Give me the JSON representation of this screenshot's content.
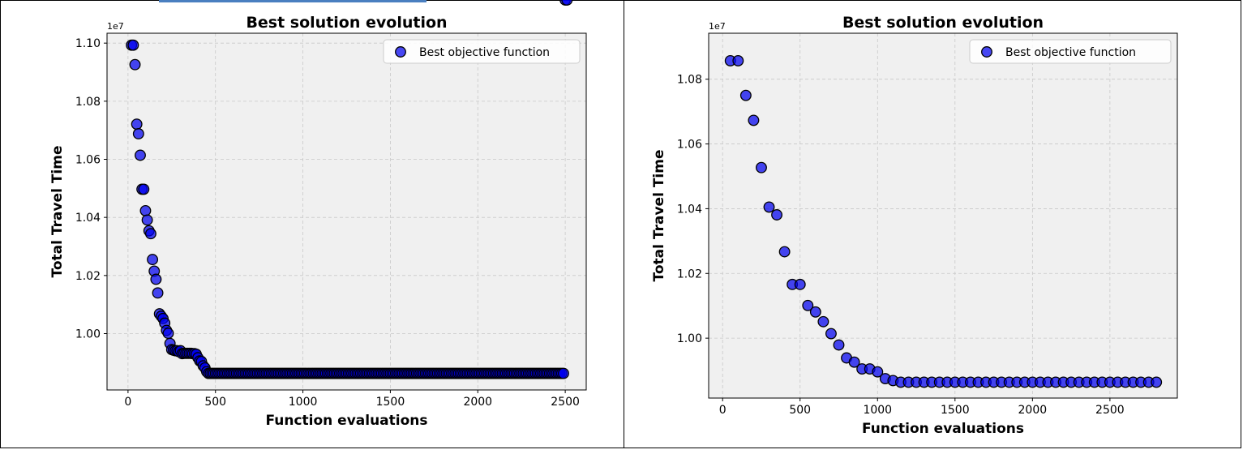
{
  "chart_data": [
    {
      "type": "scatter",
      "title": "Best solution evolution",
      "xlabel": "Function evaluations",
      "ylabel": "Total Travel Time",
      "y_offset_label": "1e7",
      "y_scale": 10000000,
      "xlim": [
        -120,
        2620
      ],
      "ylim": [
        0.9806,
        1.1034
      ],
      "xticks": [
        0,
        500,
        1000,
        1500,
        2000,
        2500
      ],
      "xtick_labels": [
        "0",
        "500",
        "1000",
        "1500",
        "2000",
        "2500"
      ],
      "yticks": [
        1.0,
        1.02,
        1.04,
        1.06,
        1.08,
        1.1
      ],
      "ytick_labels": [
        "1.00",
        "1.02",
        "1.04",
        "1.06",
        "1.08",
        "1.10"
      ],
      "grid": true,
      "legend": "top-right",
      "series": [
        {
          "name": "Best objective function",
          "color": "#0000ee",
          "points_x": [
            20,
            30,
            40,
            50,
            60,
            70,
            80,
            90,
            100,
            110,
            120,
            130,
            140,
            150,
            160,
            170,
            180,
            190,
            200,
            210,
            220,
            230,
            240,
            250,
            260,
            270,
            280,
            290,
            300,
            310,
            320,
            330,
            340,
            350,
            360,
            370,
            380,
            390,
            400,
            410,
            420,
            430,
            440,
            450,
            460,
            470,
            480,
            490,
            500,
            510,
            520,
            530,
            540,
            550,
            560,
            570,
            580,
            590,
            600,
            610,
            620,
            630,
            640,
            650,
            660,
            670,
            680,
            690,
            700,
            710,
            720,
            730,
            740,
            750,
            760,
            770,
            780,
            790,
            800,
            810,
            820,
            830,
            840,
            850,
            860,
            870,
            880,
            890,
            900,
            910,
            920,
            930,
            940,
            950,
            960,
            970,
            980,
            990,
            1000,
            1010,
            1020,
            1030,
            1040,
            1050,
            1060,
            1070,
            1080,
            1090,
            1100,
            1110,
            1120,
            1130,
            1140,
            1150,
            1160,
            1170,
            1180,
            1190,
            1200,
            1210,
            1220,
            1230,
            1240,
            1250,
            1260,
            1270,
            1280,
            1290,
            1300,
            1310,
            1320,
            1330,
            1340,
            1350,
            1360,
            1370,
            1380,
            1390,
            1400,
            1410,
            1420,
            1430,
            1440,
            1450,
            1460,
            1470,
            1480,
            1490,
            1500,
            1510,
            1520,
            1530,
            1540,
            1550,
            1560,
            1570,
            1580,
            1590,
            1600,
            1610,
            1620,
            1630,
            1640,
            1650,
            1660,
            1670,
            1680,
            1690,
            1700,
            1710,
            1720,
            1730,
            1740,
            1750,
            1760,
            1770,
            1780,
            1790,
            1800,
            1810,
            1820,
            1830,
            1840,
            1850,
            1860,
            1870,
            1880,
            1890,
            1900,
            1910,
            1920,
            1930,
            1940,
            1950,
            1960,
            1970,
            1980,
            1990,
            2000,
            2010,
            2020,
            2030,
            2040,
            2050,
            2060,
            2070,
            2080,
            2090,
            2100,
            2110,
            2120,
            2130,
            2140,
            2150,
            2160,
            2170,
            2180,
            2190,
            2200,
            2210,
            2220,
            2230,
            2240,
            2250,
            2260,
            2270,
            2280,
            2290,
            2300,
            2310,
            2320,
            2330,
            2340,
            2350,
            2360,
            2370,
            2380,
            2390,
            2400,
            2410,
            2420,
            2430,
            2440,
            2450,
            2460,
            2470,
            2480,
            2490,
            2500,
            2510
          ],
          "points_y": [
            1.0993,
            1.0993,
            1.0926,
            1.0721,
            1.0688,
            1.0614,
            1.0497,
            1.0497,
            1.0423,
            1.0391,
            1.0354,
            1.0344,
            1.0255,
            1.0215,
            1.0187,
            1.014,
            1.0068,
            1.006,
            1.0052,
            1.0036,
            1.0011,
            1.0001,
            0.9966,
            0.9945,
            0.9943,
            0.9941,
            0.9941,
            0.9938,
            0.9941,
            0.9931,
            0.9932,
            0.9932,
            0.9932,
            0.9932,
            0.9932,
            0.9931,
            0.9931,
            0.9929,
            0.9917,
            0.9906,
            0.9904,
            0.9889,
            0.9882,
            0.9869,
            0.9863,
            0.9863,
            0.9863,
            0.9863,
            0.9863,
            0.9863,
            0.9863,
            0.9863,
            0.9863,
            0.9863,
            0.9863,
            0.9863,
            0.9863,
            0.9863,
            0.9863,
            0.9863,
            0.9863,
            0.9863,
            0.9863,
            0.9863,
            0.9863,
            0.9863,
            0.9863,
            0.9863,
            0.9863,
            0.9863,
            0.9863,
            0.9863,
            0.9863,
            0.9863,
            0.9863,
            0.9863,
            0.9863,
            0.9863,
            0.9863,
            0.9863,
            0.9863,
            0.9863,
            0.9863,
            0.9863,
            0.9863,
            0.9863,
            0.9863,
            0.9863,
            0.9863,
            0.9863,
            0.9863,
            0.9863,
            0.9863,
            0.9863,
            0.9863,
            0.9863,
            0.9863,
            0.9863,
            0.9863,
            0.9863,
            0.9863,
            0.9863,
            0.9863,
            0.9863,
            0.9863,
            0.9863,
            0.9863,
            0.9863,
            0.9863,
            0.9863,
            0.9863,
            0.9863,
            0.9863,
            0.9863,
            0.9863,
            0.9863,
            0.9863,
            0.9863,
            0.9863,
            0.9863,
            0.9863,
            0.9863,
            0.9863,
            0.9863,
            0.9863,
            0.9863,
            0.9863,
            0.9863,
            0.9863,
            0.9863,
            0.9863,
            0.9863,
            0.9863,
            0.9863,
            0.9863,
            0.9863,
            0.9863,
            0.9863,
            0.9863,
            0.9863,
            0.9863,
            0.9863,
            0.9863,
            0.9863,
            0.9863,
            0.9863,
            0.9863,
            0.9863,
            0.9863,
            0.9863,
            0.9863,
            0.9863,
            0.9863,
            0.9863,
            0.9863,
            0.9863,
            0.9863,
            0.9863,
            0.9863,
            0.9863,
            0.9863,
            0.9863,
            0.9863,
            0.9863,
            0.9863,
            0.9863,
            0.9863,
            0.9863,
            0.9863,
            0.9863,
            0.9863,
            0.9863,
            0.9863,
            0.9863,
            0.9863,
            0.9863,
            0.9863,
            0.9863,
            0.9863,
            0.9863,
            0.9863,
            0.9863,
            0.9863,
            0.9863,
            0.9863,
            0.9863,
            0.9863,
            0.9863,
            0.9863,
            0.9863,
            0.9863,
            0.9863,
            0.9863,
            0.9863,
            0.9863,
            0.9863,
            0.9863,
            0.9863,
            0.9863,
            0.9863,
            0.9863,
            0.9863,
            0.9863,
            0.9863,
            0.9863,
            0.9863,
            0.9863,
            0.9863,
            0.9863,
            0.9863,
            0.9863,
            0.9863,
            0.9863,
            0.9863,
            0.9863,
            0.9863,
            0.9863,
            0.9863,
            0.9863,
            0.9863,
            0.9863,
            0.9863,
            0.9863,
            0.9863,
            0.9863,
            0.9863,
            0.9863,
            0.9863,
            0.9863,
            0.9863,
            0.9863,
            0.9863,
            0.9863,
            0.9863,
            0.9863,
            0.9863,
            0.9863,
            0.9863,
            0.9863,
            0.9863,
            0.9863,
            0.9863,
            0.9863,
            0.9863,
            0.9863,
            0.9863,
            0.9863,
            0.9863
          ]
        }
      ]
    },
    {
      "type": "scatter",
      "title": "Best solution evolution",
      "xlabel": "Function evaluations",
      "ylabel": "Total Travel Time",
      "y_offset_label": "1e7",
      "y_scale": 10000000,
      "xlim": [
        -90,
        2935
      ],
      "ylim": [
        0.9815,
        1.0942
      ],
      "xticks": [
        0,
        500,
        1000,
        1500,
        2000,
        2500
      ],
      "xtick_labels": [
        "0",
        "500",
        "1000",
        "1500",
        "2000",
        "2500"
      ],
      "yticks": [
        1.0,
        1.02,
        1.04,
        1.06,
        1.08
      ],
      "ytick_labels": [
        "1.00",
        "1.02",
        "1.04",
        "1.06",
        "1.08"
      ],
      "grid": true,
      "legend": "top-right",
      "series": [
        {
          "name": "Best objective function",
          "color": "#0000ee",
          "points_x": [
            50,
            100,
            150,
            200,
            250,
            300,
            350,
            400,
            450,
            500,
            550,
            600,
            650,
            700,
            750,
            800,
            850,
            900,
            950,
            1000,
            1050,
            1100,
            1150,
            1200,
            1250,
            1300,
            1350,
            1400,
            1450,
            1500,
            1550,
            1600,
            1650,
            1700,
            1750,
            1800,
            1850,
            1900,
            1950,
            2000,
            2050,
            2100,
            2150,
            2200,
            2250,
            2300,
            2350,
            2400,
            2450,
            2500,
            2550,
            2600,
            2650,
            2700,
            2750,
            2800
          ],
          "points_y": [
            1.0857,
            1.0857,
            1.075,
            1.0673,
            1.0527,
            1.0405,
            1.0381,
            1.0267,
            1.0166,
            1.0166,
            1.0101,
            1.0081,
            1.0051,
            1.0014,
            0.9979,
            0.9939,
            0.9926,
            0.9905,
            0.9905,
            0.9896,
            0.9875,
            0.9869,
            0.9864,
            0.9864,
            0.9864,
            0.9864,
            0.9864,
            0.9864,
            0.9864,
            0.9864,
            0.9864,
            0.9864,
            0.9864,
            0.9864,
            0.9864,
            0.9864,
            0.9864,
            0.9864,
            0.9864,
            0.9864,
            0.9864,
            0.9864,
            0.9864,
            0.9864,
            0.9864,
            0.9864,
            0.9864,
            0.9864,
            0.9864,
            0.9864,
            0.9864,
            0.9864,
            0.9864,
            0.9864,
            0.9864,
            0.9864
          ]
        }
      ]
    }
  ]
}
